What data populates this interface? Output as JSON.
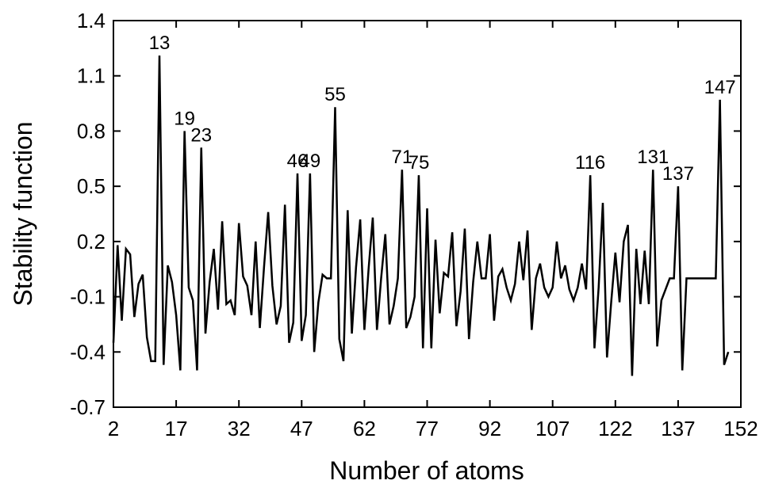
{
  "chart_data": {
    "type": "line",
    "xlabel": "Number of atoms",
    "ylabel": "Stability function",
    "color": "#000000",
    "x": [
      2,
      3,
      4,
      5,
      6,
      7,
      8,
      9,
      10,
      11,
      12,
      13,
      14,
      15,
      16,
      17,
      18,
      19,
      20,
      21,
      22,
      23,
      24,
      25,
      26,
      27,
      28,
      29,
      30,
      31,
      32,
      33,
      34,
      35,
      36,
      37,
      38,
      39,
      40,
      41,
      42,
      43,
      44,
      45,
      46,
      47,
      48,
      49,
      50,
      51,
      52,
      53,
      54,
      55,
      56,
      57,
      58,
      59,
      60,
      61,
      62,
      63,
      64,
      65,
      66,
      67,
      68,
      69,
      70,
      71,
      72,
      73,
      74,
      75,
      76,
      77,
      78,
      79,
      80,
      81,
      82,
      83,
      84,
      85,
      86,
      87,
      88,
      89,
      90,
      91,
      92,
      93,
      94,
      95,
      96,
      97,
      98,
      99,
      100,
      101,
      102,
      103,
      104,
      105,
      106,
      107,
      108,
      109,
      110,
      111,
      112,
      113,
      114,
      115,
      116,
      117,
      118,
      119,
      120,
      121,
      122,
      123,
      124,
      125,
      126,
      127,
      128,
      129,
      130,
      131,
      132,
      133,
      134,
      135,
      136,
      137,
      138,
      139,
      140,
      141,
      142,
      143,
      144,
      145,
      146,
      147,
      148,
      149
    ],
    "values": [
      -0.35,
      0.18,
      -0.23,
      0.16,
      0.13,
      -0.21,
      -0.03,
      0.02,
      -0.32,
      -0.45,
      -0.45,
      1.21,
      -0.47,
      0.07,
      -0.02,
      -0.2,
      -0.5,
      0.8,
      -0.05,
      -0.12,
      -0.5,
      0.71,
      -0.3,
      -0.02,
      0.16,
      -0.17,
      0.31,
      -0.14,
      -0.12,
      -0.2,
      0.3,
      0.01,
      -0.04,
      -0.2,
      0.2,
      -0.27,
      0.06,
      0.36,
      -0.04,
      -0.25,
      -0.15,
      0.4,
      -0.35,
      -0.24,
      0.57,
      -0.34,
      -0.2,
      0.57,
      -0.4,
      -0.13,
      0.02,
      0.0,
      0.0,
      0.93,
      -0.33,
      -0.45,
      0.37,
      -0.3,
      0.06,
      0.32,
      -0.28,
      0.05,
      0.33,
      -0.28,
      0.0,
      0.24,
      -0.25,
      -0.15,
      0.0,
      0.59,
      -0.27,
      -0.21,
      -0.1,
      0.56,
      -0.38,
      0.38,
      -0.38,
      0.21,
      -0.19,
      0.03,
      0.01,
      0.25,
      -0.26,
      -0.07,
      0.27,
      -0.33,
      -0.02,
      0.2,
      0.0,
      0.0,
      0.24,
      -0.23,
      0.01,
      0.05,
      -0.05,
      -0.12,
      -0.03,
      0.2,
      -0.01,
      0.26,
      -0.28,
      0.0,
      0.08,
      -0.05,
      -0.1,
      -0.05,
      0.2,
      0.0,
      0.07,
      -0.06,
      -0.12,
      -0.05,
      0.08,
      -0.06,
      0.56,
      -0.38,
      -0.05,
      0.41,
      -0.43,
      -0.13,
      0.14,
      -0.13,
      0.2,
      0.29,
      -0.53,
      0.16,
      -0.14,
      0.15,
      -0.14,
      0.59,
      -0.37,
      -0.12,
      -0.06,
      0.0,
      0.0,
      0.5,
      -0.5,
      0.0,
      0.0,
      0.0,
      0.0,
      0.0,
      0.0,
      0.0,
      0.0,
      0.97,
      -0.47,
      -0.4
    ],
    "xlim": [
      2,
      152
    ],
    "xticks": [
      2,
      17,
      32,
      47,
      62,
      77,
      92,
      107,
      122,
      137,
      152
    ],
    "ylim": [
      -0.7,
      1.4
    ],
    "yticks": [
      -0.7,
      -0.4,
      -0.1,
      0.2,
      0.5,
      0.8,
      1.1,
      1.4
    ],
    "annotations": [
      {
        "text": "13",
        "x": 13
      },
      {
        "text": "19",
        "x": 19
      },
      {
        "text": "23",
        "x": 23
      },
      {
        "text": "46",
        "x": 46
      },
      {
        "text": "49",
        "x": 49
      },
      {
        "text": "55",
        "x": 55
      },
      {
        "text": "71",
        "x": 71
      },
      {
        "text": "75",
        "x": 75
      },
      {
        "text": "116",
        "x": 116
      },
      {
        "text": "131",
        "x": 131
      },
      {
        "text": "137",
        "x": 137
      },
      {
        "text": "147",
        "x": 147
      }
    ]
  }
}
